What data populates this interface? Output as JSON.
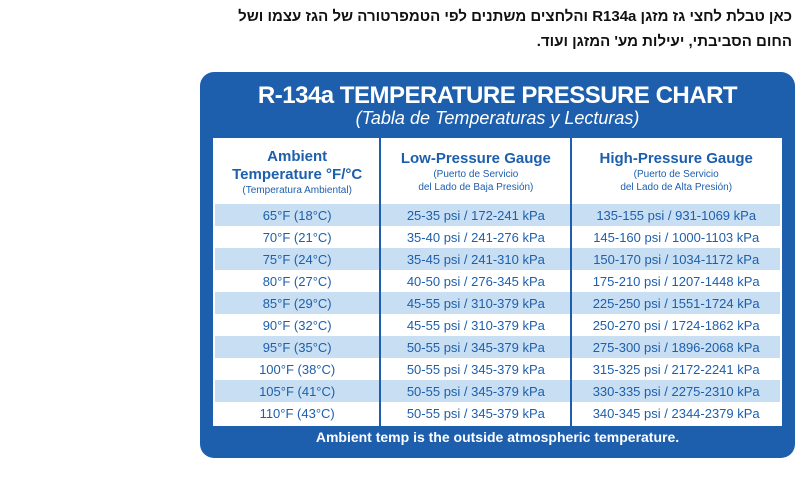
{
  "intro": {
    "lines": [
      "כאן טבלת לחצי גז מזגן R134a והלחצים משתנים לפי הטמפרטורה של הגז עצמו ושל",
      "החום הסביבתי, יעילות מע' המזגן ועוד."
    ]
  },
  "chart": {
    "title": "R-134a TEMPERATURE PRESSURE CHART",
    "subtitle": "(Tabla de Temperaturas y Lecturas)",
    "headers": [
      {
        "lines": [
          "Ambient",
          "Temperature °F/°C",
          "(Temperatura Ambiental)"
        ]
      },
      {
        "lines": [
          "Low-Pressure Gauge",
          "(Puerto de Servicio",
          "del Lado de Baja Presión)"
        ]
      },
      {
        "lines": [
          "High-Pressure Gauge",
          "(Puerto de Servicio",
          "del Lado de Alta Presión)"
        ]
      }
    ],
    "rows": [
      [
        "65°F (18°C)",
        "25-35 psi / 172-241 kPa",
        "135-155 psi / 931-1069 kPa"
      ],
      [
        "70°F (21°C)",
        "35-40 psi / 241-276 kPa",
        "145-160 psi / 1000-1103 kPa"
      ],
      [
        "75°F (24°C)",
        "35-45 psi / 241-310 kPa",
        "150-170 psi / 1034-1172 kPa"
      ],
      [
        "80°F (27°C)",
        "40-50 psi / 276-345 kPa",
        "175-210 psi / 1207-1448 kPa"
      ],
      [
        "85°F (29°C)",
        "45-55 psi / 310-379 kPa",
        "225-250 psi / 1551-1724 kPa"
      ],
      [
        "90°F (32°C)",
        "45-55 psi / 310-379 kPa",
        "250-270 psi / 1724-1862 kPa"
      ],
      [
        "95°F (35°C)",
        "50-55 psi / 345-379 kPa",
        "275-300 psi / 1896-2068 kPa"
      ],
      [
        "100°F (38°C)",
        "50-55 psi / 345-379 kPa",
        "315-325 psi / 2172-2241 kPa"
      ],
      [
        "105°F (41°C)",
        "50-55 psi / 345-379 kPa",
        "330-335 psi / 2275-2310 kPa"
      ],
      [
        "110°F (43°C)",
        "50-55 psi / 345-379 kPa",
        "340-345 psi / 2344-2379 kPa"
      ]
    ],
    "footer": "Ambient temp is the outside atmospheric temperature."
  }
}
